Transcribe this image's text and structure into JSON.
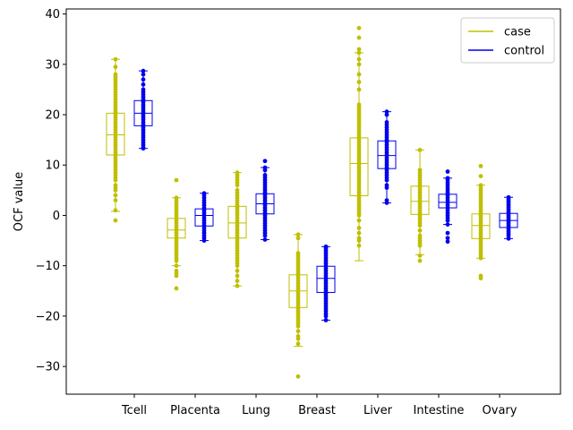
{
  "chart_data": {
    "type": "box",
    "ylabel": "OCF value",
    "xlabel": "",
    "ylim": [
      -35.5,
      41
    ],
    "yticks": [
      -30,
      -20,
      -10,
      0,
      10,
      20,
      30,
      40
    ],
    "ytick_labels": [
      "−30",
      "−20",
      "−10",
      "0",
      "10",
      "20",
      "30",
      "40"
    ],
    "grid": false,
    "legend_placement": "top-right",
    "categories": [
      "Tcell",
      "Placenta",
      "Lung",
      "Breast",
      "Liver",
      "Intestine",
      "Ovary"
    ],
    "series": [
      {
        "name": "case",
        "color": "#bfbf00",
        "boxes": [
          {
            "whisker_low": 0.8,
            "q1": 12.0,
            "median": 16.0,
            "q3": 20.3,
            "whisker_high": 31.0,
            "points": [
              31,
              29.5,
              28,
              27.5,
              27,
              26.5,
              26,
              25.5,
              25,
              24.5,
              24,
              23.5,
              23,
              22.5,
              22,
              21.5,
              21,
              20.5,
              20,
              19.5,
              19,
              18.5,
              18,
              17.5,
              17,
              16.5,
              16,
              15.5,
              15,
              14.5,
              14,
              13.5,
              13,
              12.5,
              12,
              11.5,
              11,
              10.5,
              10,
              9.5,
              9,
              8.5,
              8,
              7.5,
              7,
              6,
              5.5,
              5,
              4,
              3,
              1,
              -1
            ]
          },
          {
            "whisker_low": -10.0,
            "q1": -4.5,
            "median": -2.9,
            "q3": -0.6,
            "whisker_high": 3.5,
            "points": [
              7,
              3.5,
              3,
              2.5,
              2,
              1.5,
              1,
              0.5,
              0,
              -0.5,
              -1,
              -1.5,
              -2,
              -2.5,
              -3,
              -3.5,
              -4,
              -4.5,
              -5,
              -5.5,
              -6,
              -6.5,
              -7,
              -7.5,
              -8,
              -8.5,
              -9,
              -10,
              -11,
              -11.5,
              -12,
              -14.5
            ]
          },
          {
            "whisker_low": -14.0,
            "q1": -4.5,
            "median": -1.5,
            "q3": 1.8,
            "whisker_high": 8.5,
            "points": [
              8.5,
              8,
              7.5,
              7,
              6.5,
              6,
              5,
              4.5,
              4,
              3.5,
              3,
              2.5,
              2,
              1.5,
              1,
              0.5,
              0,
              -0.5,
              -1,
              -1.5,
              -2,
              -2.5,
              -3,
              -3.5,
              -4,
              -4.5,
              -5,
              -5.5,
              -6,
              -6.5,
              -7,
              -7.5,
              -8,
              -8.5,
              -9,
              -9.5,
              -10,
              -11,
              -12,
              -13,
              -14
            ]
          },
          {
            "whisker_low": -26.0,
            "q1": -18.3,
            "median": -15.0,
            "q3": -11.8,
            "whisker_high": -3.8,
            "points": [
              -3.8,
              -4.5,
              -7.5,
              -8,
              -8.5,
              -9,
              -9.5,
              -10,
              -10.5,
              -11,
              -11.5,
              -12,
              -12.5,
              -13,
              -13.5,
              -14,
              -14.5,
              -15,
              -15.5,
              -16,
              -16.5,
              -17,
              -17.5,
              -18,
              -18.5,
              -19,
              -19.5,
              -20,
              -20.5,
              -21,
              -21.5,
              -22,
              -23,
              -24,
              -24.5,
              -25.5,
              -32
            ]
          },
          {
            "whisker_low": -9.0,
            "q1": 3.9,
            "median": 10.3,
            "q3": 15.4,
            "whisker_high": 32.3,
            "points": [
              37.2,
              35.3,
              33,
              32.3,
              31,
              30,
              28,
              26.5,
              25,
              22,
              21.5,
              21,
              20.5,
              20,
              19.5,
              19,
              18.5,
              18,
              17.5,
              17,
              16.5,
              16,
              15.5,
              15,
              14.5,
              14,
              13.5,
              13,
              12.5,
              12,
              11.5,
              11,
              10.5,
              10,
              9.5,
              9,
              8.5,
              8,
              7.5,
              7,
              6.5,
              6,
              5.5,
              5,
              4.5,
              4,
              3.5,
              3,
              2.5,
              2,
              1.5,
              1,
              0.5,
              0,
              -1,
              -2.5,
              -3.5,
              -4.5,
              -5,
              -6
            ]
          },
          {
            "whisker_low": -7.8,
            "q1": 0.2,
            "median": 2.8,
            "q3": 5.8,
            "whisker_high": 13.0,
            "points": [
              13,
              9,
              8.5,
              8,
              7.5,
              7,
              6.5,
              6,
              5.5,
              5,
              4.5,
              4,
              3.5,
              3,
              2.5,
              2,
              1.5,
              1,
              0.5,
              0,
              -0.5,
              -1,
              -1.5,
              -2,
              -3,
              -4,
              -4.5,
              -5,
              -5.5,
              -6,
              -8,
              -9
            ]
          },
          {
            "whisker_low": -8.5,
            "q1": -4.6,
            "median": -2.0,
            "q3": 0.3,
            "whisker_high": 6.0,
            "points": [
              9.8,
              7.8,
              6,
              5.5,
              5,
              4.5,
              4,
              3.5,
              3,
              2.5,
              2,
              1.5,
              1,
              0.5,
              0,
              -0.5,
              -1,
              -1.5,
              -2,
              -2.5,
              -3,
              -3.5,
              -4,
              -4.5,
              -5,
              -5.5,
              -6,
              -6.5,
              -7,
              -7.5,
              -8,
              -8.5,
              -12,
              -12.5
            ]
          }
        ]
      },
      {
        "name": "control",
        "color": "#0000ee",
        "boxes": [
          {
            "whisker_low": 13.3,
            "q1": 17.8,
            "median": 20.3,
            "q3": 22.8,
            "whisker_high": 28.7,
            "points": [
              28.7,
              28,
              27,
              26,
              25,
              24.5,
              24,
              23.5,
              23,
              22.5,
              22,
              21.5,
              21,
              20.5,
              20,
              19.5,
              19,
              18.5,
              18,
              17.5,
              17,
              16.5,
              16,
              15.5,
              15,
              14.5,
              14,
              13.5,
              13.3
            ]
          },
          {
            "whisker_low": -5.0,
            "q1": -2.1,
            "median": 0.0,
            "q3": 1.3,
            "whisker_high": 4.4,
            "points": [
              4.4,
              4,
              3.5,
              3,
              2.5,
              2,
              1.5,
              1,
              0.5,
              0,
              -0.5,
              -1,
              -1.5,
              -2,
              -2.5,
              -3,
              -3.5,
              -4,
              -4.5,
              -5
            ]
          },
          {
            "whisker_low": -4.8,
            "q1": 0.3,
            "median": 2.3,
            "q3": 4.3,
            "whisker_high": 9.5,
            "points": [
              10.8,
              9.5,
              9,
              8,
              7.5,
              7,
              6.5,
              6,
              5.5,
              5,
              4.5,
              4,
              3.5,
              3,
              2.5,
              2,
              1.5,
              1,
              0.5,
              0,
              -0.5,
              -1,
              -1.5,
              -2,
              -2.5,
              -3,
              -3.5,
              -4,
              -4.8
            ]
          },
          {
            "whisker_low": -20.8,
            "q1": -15.3,
            "median": -12.5,
            "q3": -10.1,
            "whisker_high": -6.2,
            "points": [
              -6.2,
              -6.5,
              -7,
              -7.5,
              -8,
              -8.5,
              -9,
              -9.5,
              -10,
              -10.5,
              -11,
              -11.5,
              -12,
              -12.5,
              -13,
              -13.5,
              -14,
              -14.5,
              -15,
              -15.5,
              -16,
              -16.5,
              -17,
              -17.5,
              -18,
              -18.5,
              -19,
              -19.5,
              -20,
              -20.8
            ]
          },
          {
            "whisker_low": 2.5,
            "q1": 9.3,
            "median": 11.9,
            "q3": 14.8,
            "whisker_high": 20.6,
            "points": [
              20.6,
              20,
              18.5,
              18,
              17.5,
              17,
              16.5,
              16,
              15.5,
              15,
              14.5,
              14,
              13.5,
              13,
              12.5,
              12,
              11.5,
              11,
              10.5,
              10,
              9.5,
              9,
              8.5,
              8,
              7.5,
              7,
              6,
              5.5,
              3,
              2.5
            ]
          },
          {
            "whisker_low": -1.8,
            "q1": 1.5,
            "median": 2.6,
            "q3": 4.2,
            "whisker_high": 7.4,
            "points": [
              8.7,
              7.4,
              7,
              6.5,
              6,
              5.5,
              5,
              4.5,
              4,
              3.5,
              3,
              2.5,
              2,
              1.5,
              1,
              0.5,
              0,
              -0.5,
              -1,
              -1.8,
              -3.5,
              -4.5,
              -5.2
            ]
          },
          {
            "whisker_low": -4.6,
            "q1": -2.4,
            "median": -1.0,
            "q3": 0.4,
            "whisker_high": 3.6,
            "points": [
              3.6,
              3.2,
              2.8,
              2.4,
              2,
              1.6,
              1.2,
              0.8,
              0.4,
              0,
              -0.4,
              -0.8,
              -1.2,
              -1.6,
              -2,
              -2.4,
              -2.8,
              -3.2,
              -3.6,
              -4,
              -4.6
            ]
          }
        ]
      }
    ]
  }
}
